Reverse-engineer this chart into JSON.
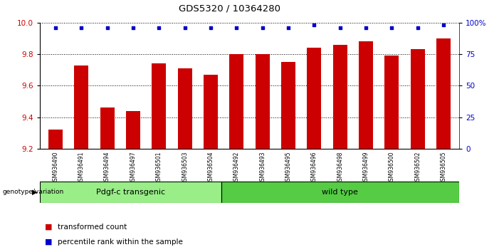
{
  "title": "GDS5320 / 10364280",
  "samples": [
    "GSM936490",
    "GSM936491",
    "GSM936494",
    "GSM936497",
    "GSM936501",
    "GSM936503",
    "GSM936504",
    "GSM936492",
    "GSM936493",
    "GSM936495",
    "GSM936496",
    "GSM936498",
    "GSM936499",
    "GSM936500",
    "GSM936502",
    "GSM936505"
  ],
  "bar_values": [
    9.32,
    9.73,
    9.46,
    9.44,
    9.74,
    9.71,
    9.67,
    9.8,
    9.8,
    9.75,
    9.84,
    9.86,
    9.88,
    9.79,
    9.83,
    9.9
  ],
  "percentile_values": [
    96,
    96,
    96,
    96,
    96,
    96,
    96,
    96,
    96,
    96,
    98,
    96,
    96,
    96,
    96,
    98
  ],
  "bar_color": "#cc0000",
  "percentile_color": "#0000cc",
  "ylim_left": [
    9.2,
    10.0
  ],
  "ylim_right": [
    0,
    100
  ],
  "yticks_left": [
    9.2,
    9.4,
    9.6,
    9.8,
    10.0
  ],
  "yticks_right": [
    0,
    25,
    50,
    75,
    100
  ],
  "groups": [
    {
      "label": "Pdgf-c transgenic",
      "count": 7,
      "color": "#99ee88"
    },
    {
      "label": "wild type",
      "count": 9,
      "color": "#55cc44"
    }
  ],
  "group_row_label": "genotype/variation",
  "legend_items": [
    {
      "color": "#cc0000",
      "label": "transformed count"
    },
    {
      "color": "#0000cc",
      "label": "percentile rank within the sample"
    }
  ],
  "bar_width": 0.55,
  "tick_label_color_left": "#cc0000",
  "tick_label_color_right": "#0000cc",
  "background_color": "#ffffff",
  "plot_bg_color": "#ffffff",
  "grid_color": "#000000",
  "sample_bg_color": "#cccccc"
}
